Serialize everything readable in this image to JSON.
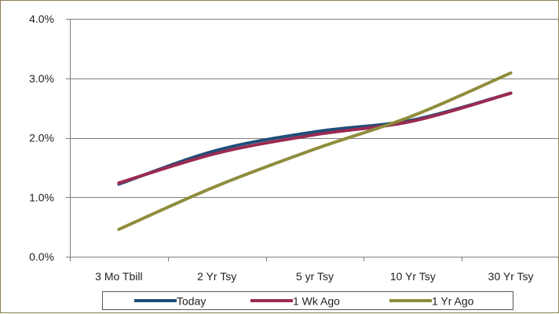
{
  "chart_data": {
    "type": "line",
    "categories": [
      "3 Mo Tbill",
      "2 Yr Tsy",
      "5 yr Tsy",
      "10 Yr Tsy",
      "30 Yr Tsy"
    ],
    "series": [
      {
        "name": "Today",
        "color": "#1f4e79",
        "values": [
          1.22,
          1.79,
          2.1,
          2.3,
          2.75
        ]
      },
      {
        "name": "1 Wk Ago",
        "color": "#9b2a52",
        "values": [
          1.24,
          1.74,
          2.05,
          2.28,
          2.75
        ]
      },
      {
        "name": "1 Yr Ago",
        "color": "#8f8c3d",
        "values": [
          0.46,
          1.19,
          1.81,
          2.37,
          3.09
        ]
      }
    ],
    "ylim": [
      0,
      4
    ],
    "yticks": [
      "0.0%",
      "1.0%",
      "2.0%",
      "3.0%",
      "4.0%"
    ],
    "ytick_values": [
      0,
      1,
      2,
      3,
      4
    ],
    "grid": true,
    "legend_position": "bottom"
  }
}
